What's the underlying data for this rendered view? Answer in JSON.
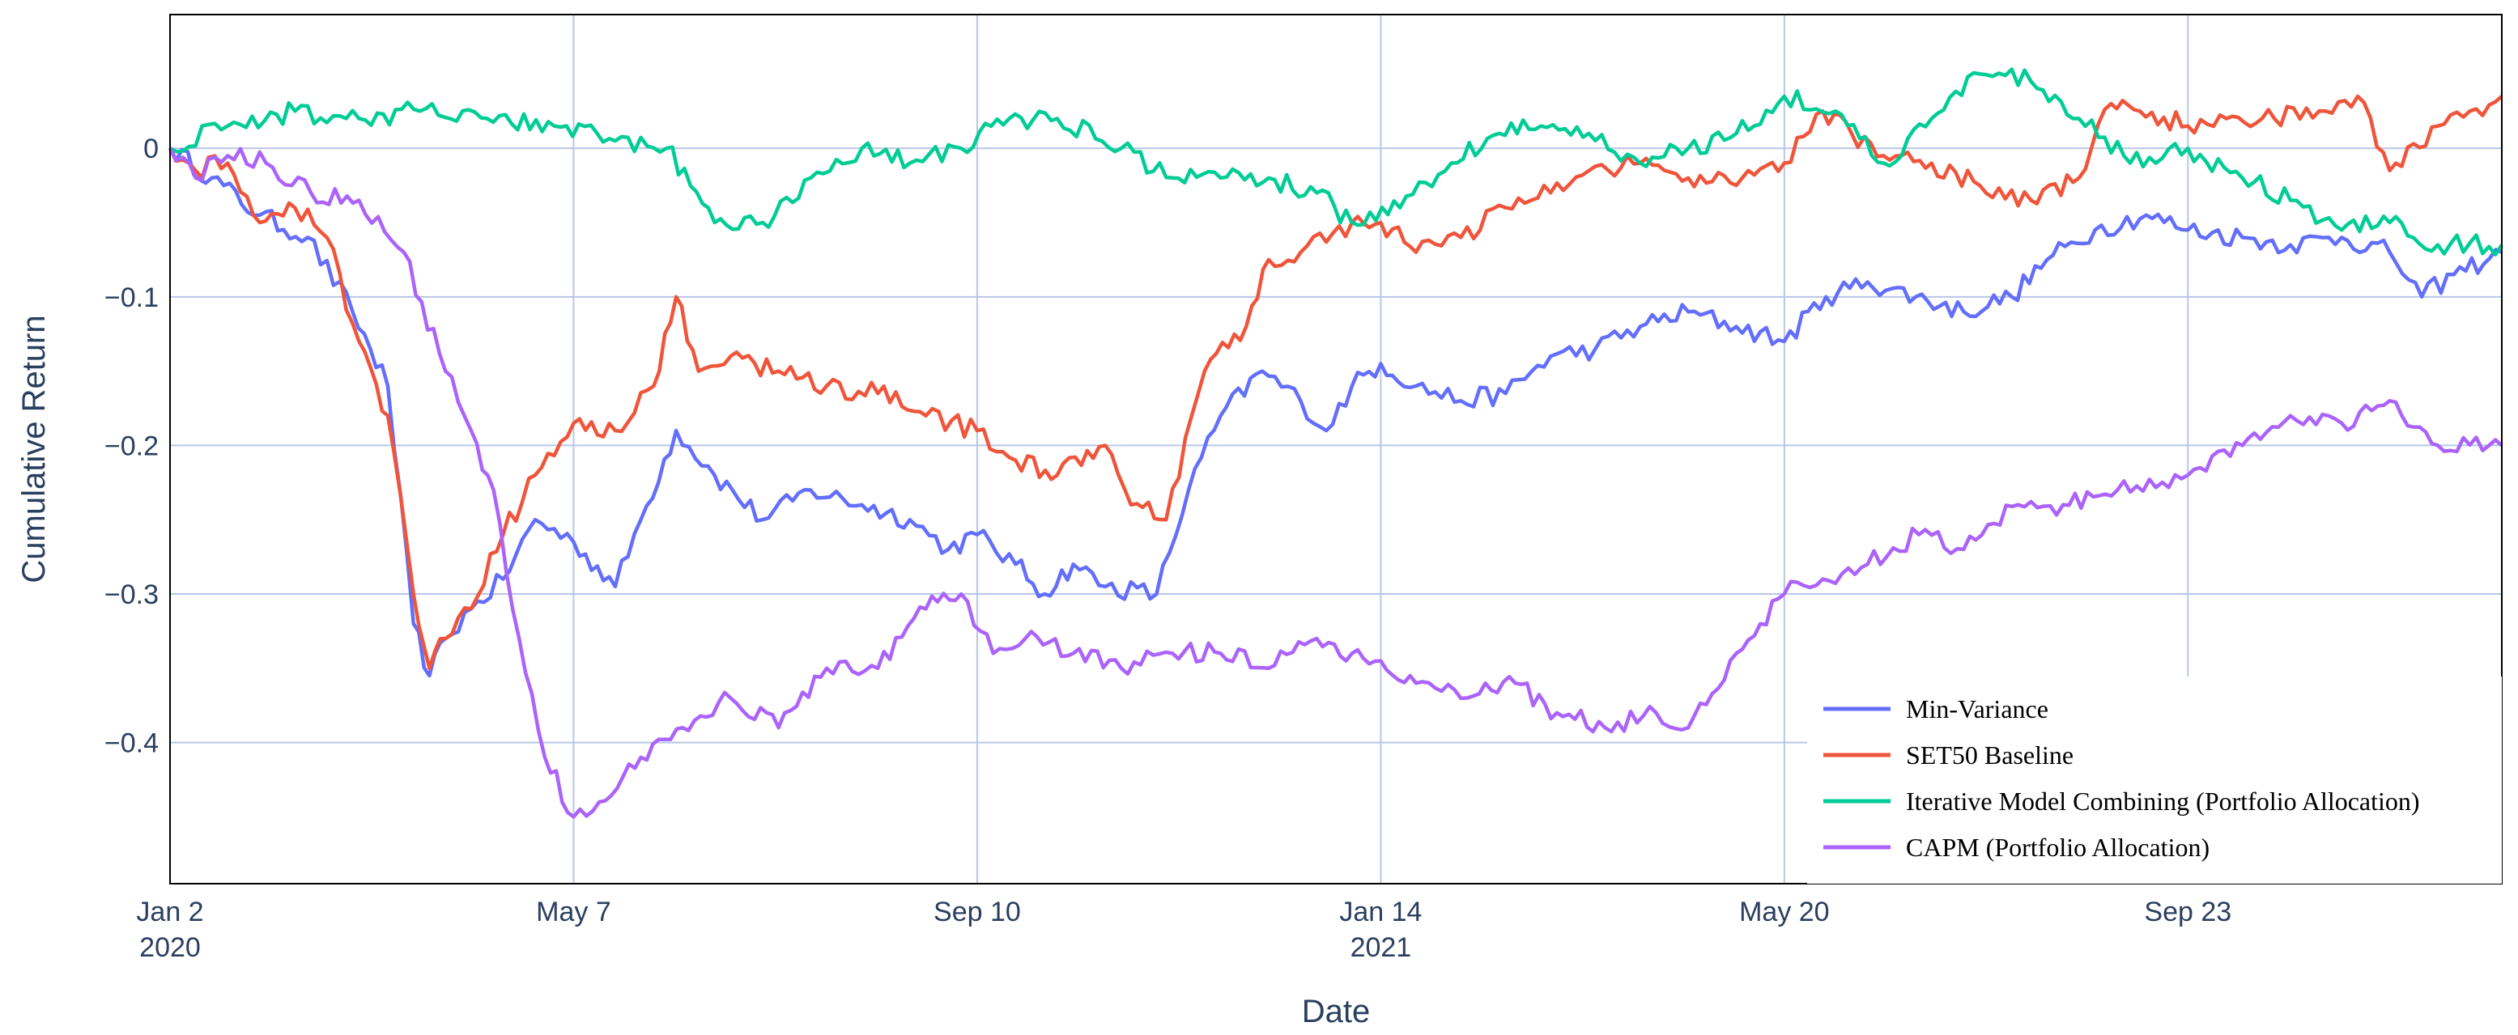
{
  "chart_data": {
    "type": "line",
    "title": "",
    "xlabel": "Date",
    "ylabel": "Cumulative Return",
    "x_range": [
      "2020-01-02",
      "2021-12-30"
    ],
    "ylim": [
      -0.495,
      0.09
    ],
    "grid": true,
    "legend_position": "bottom-right",
    "x_ticks": [
      {
        "date": "2020-01-02",
        "label": "Jan 2",
        "sublabel": "2020"
      },
      {
        "date": "2020-05-07",
        "label": "May 7",
        "sublabel": ""
      },
      {
        "date": "2020-09-10",
        "label": "Sep 10",
        "sublabel": ""
      },
      {
        "date": "2021-01-14",
        "label": "Jan 14",
        "sublabel": "2021"
      },
      {
        "date": "2021-05-20",
        "label": "May 20",
        "sublabel": ""
      },
      {
        "date": "2021-09-23",
        "label": "Sep 23",
        "sublabel": ""
      }
    ],
    "y_ticks": [
      {
        "value": 0,
        "label": "0"
      },
      {
        "value": -0.1,
        "label": "−0.1"
      },
      {
        "value": -0.2,
        "label": "−0.2"
      },
      {
        "value": -0.3,
        "label": "−0.3"
      },
      {
        "value": -0.4,
        "label": "−0.4"
      }
    ],
    "series": [
      {
        "name": "Min-Variance",
        "color": "#636efa",
        "x": [
          "2020-01-02",
          "2020-01-15",
          "2020-01-30",
          "2020-02-14",
          "2020-02-28",
          "2020-03-10",
          "2020-03-18",
          "2020-03-23",
          "2020-03-28",
          "2020-04-05",
          "2020-04-15",
          "2020-04-25",
          "2020-05-07",
          "2020-05-20",
          "2020-05-28",
          "2020-06-08",
          "2020-06-20",
          "2020-07-05",
          "2020-07-20",
          "2020-08-05",
          "2020-08-20",
          "2020-09-01",
          "2020-09-10",
          "2020-09-22",
          "2020-10-01",
          "2020-10-10",
          "2020-10-20",
          "2020-11-05",
          "2020-11-15",
          "2020-11-25",
          "2020-12-08",
          "2020-12-20",
          "2020-12-28",
          "2021-01-05",
          "2021-01-14",
          "2021-01-25",
          "2021-02-08",
          "2021-02-22",
          "2021-03-08",
          "2021-03-22",
          "2021-04-05",
          "2021-04-20",
          "2021-05-05",
          "2021-05-20",
          "2021-06-02",
          "2021-06-15",
          "2021-06-30",
          "2021-07-15",
          "2021-07-30",
          "2021-08-10",
          "2021-08-25",
          "2021-09-10",
          "2021-09-23",
          "2021-10-10",
          "2021-10-25",
          "2021-11-10",
          "2021-11-25",
          "2021-12-05",
          "2021-12-15",
          "2021-12-30"
        ],
        "values": [
          0,
          -0.02,
          -0.045,
          -0.06,
          -0.11,
          -0.16,
          -0.32,
          -0.355,
          -0.33,
          -0.31,
          -0.29,
          -0.25,
          -0.265,
          -0.295,
          -0.25,
          -0.19,
          -0.22,
          -0.25,
          -0.23,
          -0.24,
          -0.25,
          -0.27,
          -0.26,
          -0.28,
          -0.3,
          -0.28,
          -0.295,
          -0.3,
          -0.23,
          -0.18,
          -0.15,
          -0.17,
          -0.19,
          -0.16,
          -0.145,
          -0.16,
          -0.17,
          -0.165,
          -0.14,
          -0.135,
          -0.12,
          -0.11,
          -0.12,
          -0.13,
          -0.1,
          -0.09,
          -0.1,
          -0.11,
          -0.1,
          -0.075,
          -0.055,
          -0.045,
          -0.055,
          -0.06,
          -0.065,
          -0.06,
          -0.07,
          -0.1,
          -0.085,
          -0.07
        ]
      },
      {
        "name": "SET50 Baseline",
        "color": "#ef553b",
        "x": [
          "2020-01-02",
          "2020-01-10",
          "2020-01-20",
          "2020-01-30",
          "2020-02-10",
          "2020-02-20",
          "2020-03-01",
          "2020-03-10",
          "2020-03-18",
          "2020-03-23",
          "2020-03-28",
          "2020-04-05",
          "2020-04-15",
          "2020-04-25",
          "2020-05-07",
          "2020-05-20",
          "2020-06-01",
          "2020-06-08",
          "2020-06-15",
          "2020-06-25",
          "2020-07-10",
          "2020-07-25",
          "2020-08-10",
          "2020-08-25",
          "2020-09-10",
          "2020-09-22",
          "2020-10-05",
          "2020-10-20",
          "2020-10-28",
          "2020-11-08",
          "2020-11-20",
          "2020-12-03",
          "2020-12-10",
          "2020-12-20",
          "2021-01-05",
          "2021-01-14",
          "2021-01-25",
          "2021-02-08",
          "2021-02-22",
          "2021-03-08",
          "2021-03-20",
          "2021-04-05",
          "2021-04-20",
          "2021-05-05",
          "2021-05-20",
          "2021-06-01",
          "2021-06-10",
          "2021-06-20",
          "2021-07-05",
          "2021-07-20",
          "2021-08-05",
          "2021-08-20",
          "2021-08-30",
          "2021-09-08",
          "2021-09-23",
          "2021-10-05",
          "2021-10-20",
          "2021-11-05",
          "2021-11-15",
          "2021-11-25",
          "2021-12-10",
          "2021-12-20",
          "2021-12-30"
        ],
        "values": [
          0,
          -0.015,
          -0.01,
          -0.05,
          -0.04,
          -0.06,
          -0.13,
          -0.18,
          -0.3,
          -0.35,
          -0.33,
          -0.31,
          -0.26,
          -0.22,
          -0.185,
          -0.19,
          -0.16,
          -0.1,
          -0.15,
          -0.14,
          -0.15,
          -0.16,
          -0.165,
          -0.18,
          -0.19,
          -0.21,
          -0.22,
          -0.2,
          -0.24,
          -0.25,
          -0.15,
          -0.12,
          -0.075,
          -0.07,
          -0.05,
          -0.05,
          -0.07,
          -0.06,
          -0.04,
          -0.03,
          -0.015,
          -0.01,
          -0.02,
          -0.025,
          -0.01,
          0.025,
          0.01,
          -0.005,
          -0.01,
          -0.025,
          -0.035,
          -0.02,
          0.03,
          0.025,
          0.015,
          0.02,
          0.02,
          0.025,
          0.035,
          -0.015,
          0.015,
          0.025,
          0.035
        ]
      },
      {
        "name": "Iterative Model Combining (Portfolio Allocation)",
        "color": "#00cc96",
        "x": [
          "2020-01-02",
          "2020-01-20",
          "2020-02-10",
          "2020-03-01",
          "2020-03-20",
          "2020-04-10",
          "2020-05-01",
          "2020-05-20",
          "2020-06-05",
          "2020-06-20",
          "2020-07-05",
          "2020-07-20",
          "2020-08-05",
          "2020-08-20",
          "2020-09-05",
          "2020-09-20",
          "2020-10-05",
          "2020-10-25",
          "2020-11-10",
          "2020-11-25",
          "2020-12-10",
          "2020-12-25",
          "2021-01-05",
          "2021-01-20",
          "2021-02-05",
          "2021-02-20",
          "2021-03-05",
          "2021-03-20",
          "2021-04-05",
          "2021-04-20",
          "2021-05-05",
          "2021-05-20",
          "2021-06-05",
          "2021-06-20",
          "2021-07-05",
          "2021-07-20",
          "2021-08-05",
          "2021-08-20",
          "2021-09-05",
          "2021-09-23",
          "2021-10-10",
          "2021-10-25",
          "2021-11-10",
          "2021-11-25",
          "2021-12-10",
          "2021-12-30"
        ],
        "values": [
          0,
          0.015,
          0.025,
          0.02,
          0.025,
          0.02,
          0.015,
          0.005,
          0.0,
          -0.05,
          -0.05,
          -0.02,
          0.0,
          -0.01,
          0.0,
          0.02,
          0.02,
          0.0,
          -0.02,
          -0.02,
          -0.02,
          -0.03,
          -0.05,
          -0.04,
          -0.01,
          0.01,
          0.015,
          0.01,
          -0.01,
          0.0,
          0.01,
          0.035,
          0.025,
          -0.01,
          0.02,
          0.05,
          0.045,
          0.02,
          -0.01,
          0.0,
          -0.02,
          -0.035,
          -0.055,
          -0.05,
          -0.065,
          -0.065
        ]
      },
      {
        "name": "CAPM (Portfolio Allocation)",
        "color": "#ab63fa",
        "x": [
          "2020-01-02",
          "2020-01-10",
          "2020-01-20",
          "2020-02-01",
          "2020-02-15",
          "2020-03-01",
          "2020-03-15",
          "2020-03-28",
          "2020-04-05",
          "2020-04-12",
          "2020-04-20",
          "2020-04-28",
          "2020-05-07",
          "2020-05-15",
          "2020-05-28",
          "2020-06-10",
          "2020-06-25",
          "2020-07-10",
          "2020-07-25",
          "2020-08-10",
          "2020-08-25",
          "2020-09-05",
          "2020-09-15",
          "2020-09-25",
          "2020-10-10",
          "2020-10-25",
          "2020-11-10",
          "2020-11-25",
          "2020-12-10",
          "2020-12-25",
          "2021-01-05",
          "2021-01-14",
          "2021-01-25",
          "2021-02-10",
          "2021-02-25",
          "2021-03-10",
          "2021-03-25",
          "2021-04-10",
          "2021-04-20",
          "2021-05-05",
          "2021-05-20",
          "2021-06-01",
          "2021-06-15",
          "2021-07-01",
          "2021-07-15",
          "2021-08-01",
          "2021-08-15",
          "2021-09-01",
          "2021-09-23",
          "2021-10-10",
          "2021-10-25",
          "2021-11-10",
          "2021-11-25",
          "2021-12-10",
          "2021-12-30"
        ],
        "values": [
          0,
          -0.02,
          -0.005,
          -0.01,
          -0.03,
          -0.035,
          -0.07,
          -0.15,
          -0.19,
          -0.23,
          -0.33,
          -0.41,
          -0.45,
          -0.44,
          -0.41,
          -0.39,
          -0.37,
          -0.39,
          -0.35,
          -0.35,
          -0.31,
          -0.3,
          -0.34,
          -0.33,
          -0.34,
          -0.35,
          -0.34,
          -0.34,
          -0.35,
          -0.33,
          -0.34,
          -0.345,
          -0.36,
          -0.37,
          -0.36,
          -0.38,
          -0.39,
          -0.38,
          -0.39,
          -0.34,
          -0.3,
          -0.29,
          -0.28,
          -0.26,
          -0.27,
          -0.24,
          -0.24,
          -0.23,
          -0.22,
          -0.2,
          -0.18,
          -0.185,
          -0.17,
          -0.2,
          -0.2
        ]
      }
    ]
  }
}
